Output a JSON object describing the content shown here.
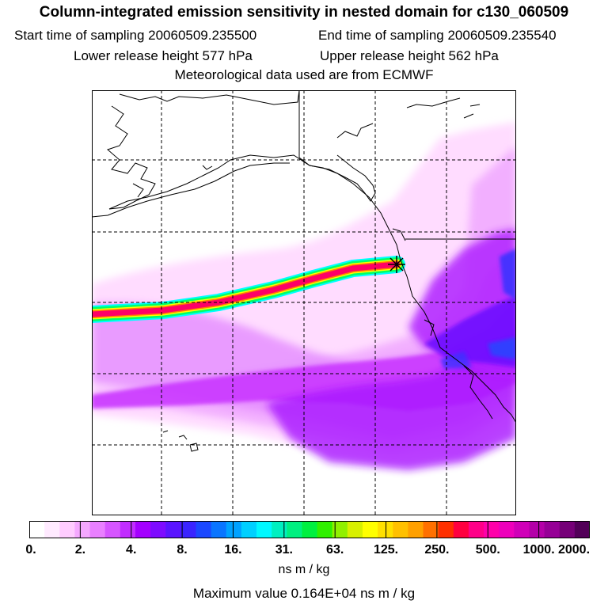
{
  "header": {
    "title": "Column-integrated emission sensitivity in nested domain for c130_060509",
    "start_label": "Start time of sampling 20060509.235500",
    "end_label": "End time of sampling 20060509.235540",
    "lower_label": "Lower release height  577 hPa",
    "upper_label": "Upper release height  562 hPa",
    "met_label": "Meteorological data used are from ECMWF"
  },
  "map": {
    "release_marker": "asterisk-icon",
    "plume_colors": [
      "#ffd6ff",
      "#ee88ff",
      "#cc22ff",
      "#8a00ff",
      "#2244ff"
    ],
    "trajectory_colors": [
      "#00ffff",
      "#00ff66",
      "#ffff00",
      "#ff0066"
    ]
  },
  "colorbar": {
    "colors": [
      "#ffffff",
      "#ffeaff",
      "#ffccff",
      "#f5a8ff",
      "#e97fff",
      "#d655ff",
      "#c12cff",
      "#a400ff",
      "#7e0bff",
      "#5a14ff",
      "#3a24ff",
      "#1b48ff",
      "#0a75ff",
      "#00a2ff",
      "#00d0ff",
      "#00f8ff",
      "#00f0c0",
      "#00f080",
      "#00f040",
      "#30f000",
      "#90f000",
      "#d8f000",
      "#ffff00",
      "#ffe000",
      "#ffc000",
      "#ffa000",
      "#ff7000",
      "#ff3000",
      "#ff0040",
      "#ff0088",
      "#ff00aa",
      "#ee00bb",
      "#d000b8",
      "#b400a8",
      "#960096",
      "#760078",
      "#520058"
    ],
    "ticks": [
      "0.",
      "2.",
      "4.",
      "8.",
      "16.",
      "31.",
      "63.",
      "125.",
      "250.",
      "500.",
      "1000.",
      "2000."
    ],
    "units": "ns m / kg",
    "max_value": "Maximum value  0.164E+04 ns m / kg"
  }
}
